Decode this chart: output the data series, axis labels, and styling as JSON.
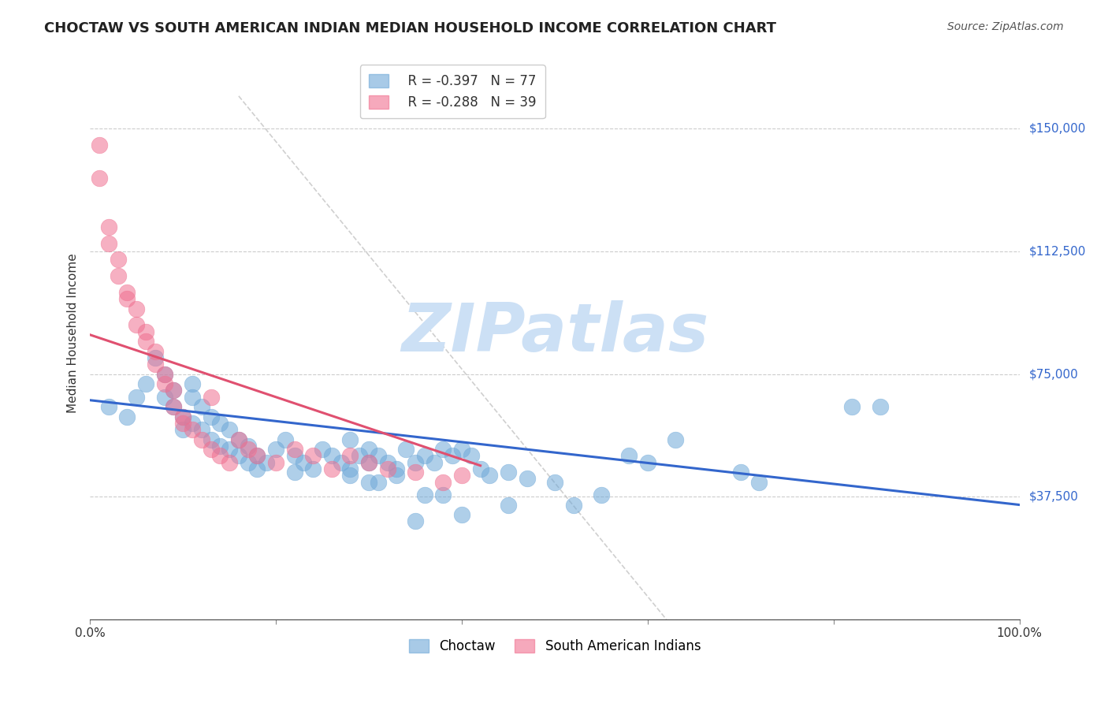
{
  "title": "CHOCTAW VS SOUTH AMERICAN INDIAN MEDIAN HOUSEHOLD INCOME CORRELATION CHART",
  "source": "Source: ZipAtlas.com",
  "xlabel": "",
  "ylabel": "Median Household Income",
  "xlim": [
    0.0,
    1.0
  ],
  "ylim": [
    0,
    175000
  ],
  "yticks": [
    0,
    37500,
    75000,
    112500,
    150000
  ],
  "ytick_labels": [
    "",
    "$37,500",
    "$75,000",
    "$112,500",
    "$150,000"
  ],
  "xtick_labels": [
    "0.0%",
    "100.0%"
  ],
  "background_color": "#ffffff",
  "grid_color": "#cccccc",
  "watermark": "ZIPatlas",
  "watermark_color": "#cce0f5",
  "choctaw_color": "#6ea8d8",
  "choctaw_edge": "#6ea8d8",
  "south_american_color": "#f07090",
  "south_american_edge": "#f07090",
  "blue_line_color": "#3366cc",
  "pink_line_color": "#e05070",
  "diagonal_color": "#bbbbbb",
  "legend_R_blue": "R = -0.397",
  "legend_N_blue": "N = 77",
  "legend_R_pink": "R = -0.288",
  "legend_N_pink": "N = 39",
  "legend_label_blue": "Choctaw",
  "legend_label_pink": "South American Indians",
  "choctaw_x": [
    0.02,
    0.04,
    0.05,
    0.06,
    0.07,
    0.08,
    0.08,
    0.09,
    0.09,
    0.1,
    0.1,
    0.11,
    0.11,
    0.11,
    0.12,
    0.12,
    0.13,
    0.13,
    0.14,
    0.14,
    0.15,
    0.15,
    0.16,
    0.16,
    0.17,
    0.17,
    0.18,
    0.18,
    0.19,
    0.2,
    0.21,
    0.22,
    0.22,
    0.23,
    0.24,
    0.25,
    0.26,
    0.27,
    0.28,
    0.28,
    0.29,
    0.3,
    0.3,
    0.31,
    0.32,
    0.33,
    0.34,
    0.35,
    0.36,
    0.37,
    0.38,
    0.39,
    0.4,
    0.41,
    0.42,
    0.43,
    0.45,
    0.47,
    0.5,
    0.52,
    0.55,
    0.58,
    0.6,
    0.63,
    0.35,
    0.4,
    0.45,
    0.82,
    0.85,
    0.7,
    0.72,
    0.36,
    0.38,
    0.28,
    0.3,
    0.31,
    0.33
  ],
  "choctaw_y": [
    65000,
    62000,
    68000,
    72000,
    80000,
    75000,
    68000,
    70000,
    65000,
    62000,
    58000,
    72000,
    68000,
    60000,
    65000,
    58000,
    62000,
    55000,
    60000,
    53000,
    58000,
    52000,
    55000,
    50000,
    53000,
    48000,
    50000,
    46000,
    48000,
    52000,
    55000,
    50000,
    45000,
    48000,
    46000,
    52000,
    50000,
    48000,
    55000,
    46000,
    50000,
    52000,
    48000,
    50000,
    48000,
    46000,
    52000,
    48000,
    50000,
    48000,
    52000,
    50000,
    52000,
    50000,
    46000,
    44000,
    45000,
    43000,
    42000,
    35000,
    38000,
    50000,
    48000,
    55000,
    30000,
    32000,
    35000,
    65000,
    65000,
    45000,
    42000,
    38000,
    38000,
    44000,
    42000,
    42000,
    44000
  ],
  "south_american_x": [
    0.01,
    0.01,
    0.02,
    0.02,
    0.03,
    0.03,
    0.04,
    0.04,
    0.05,
    0.05,
    0.06,
    0.06,
    0.07,
    0.07,
    0.08,
    0.08,
    0.09,
    0.09,
    0.1,
    0.1,
    0.11,
    0.12,
    0.13,
    0.13,
    0.14,
    0.15,
    0.16,
    0.17,
    0.18,
    0.2,
    0.22,
    0.24,
    0.26,
    0.28,
    0.3,
    0.32,
    0.35,
    0.38,
    0.4
  ],
  "south_american_y": [
    145000,
    135000,
    120000,
    115000,
    110000,
    105000,
    100000,
    98000,
    95000,
    90000,
    88000,
    85000,
    82000,
    78000,
    75000,
    72000,
    70000,
    65000,
    62000,
    60000,
    58000,
    55000,
    52000,
    68000,
    50000,
    48000,
    55000,
    52000,
    50000,
    48000,
    52000,
    50000,
    46000,
    50000,
    48000,
    46000,
    45000,
    42000,
    44000
  ],
  "blue_line_x0": 0.0,
  "blue_line_y0": 67000,
  "blue_line_x1": 1.0,
  "blue_line_y1": 35000,
  "pink_line_x0": 0.0,
  "pink_line_y0": 87000,
  "pink_line_x1": 0.42,
  "pink_line_y1": 47000,
  "diag_line_x0": 0.16,
  "diag_line_y0": 160000,
  "diag_line_x1": 0.62,
  "diag_line_y1": 0,
  "title_fontsize": 13,
  "axis_label_fontsize": 11,
  "tick_fontsize": 11,
  "legend_fontsize": 12
}
